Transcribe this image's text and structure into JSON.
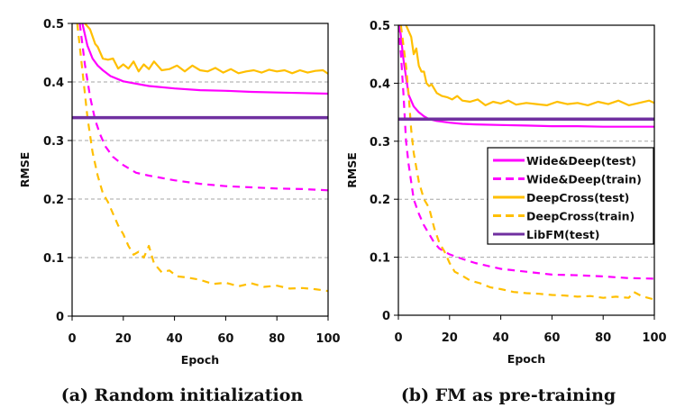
{
  "chart_data": [
    {
      "type": "line",
      "caption": "(a) Random initialization",
      "xlabel": "Epoch",
      "ylabel": "RMSE",
      "xlim": [
        0,
        100
      ],
      "ylim": [
        0,
        0.5
      ],
      "xticks": [
        "0",
        "20",
        "40",
        "60",
        "80",
        "100"
      ],
      "yticks": [
        "0",
        "0.1",
        "0.2",
        "0.3",
        "0.4",
        "0.5"
      ],
      "grid": "horizontal-dashed",
      "legend": "none",
      "series": [
        {
          "name": "Wide&Deep(test)",
          "color": "#FF00FF",
          "style": "solid",
          "x": [
            4,
            6,
            8,
            10,
            12,
            15,
            20,
            25,
            30,
            40,
            50,
            60,
            70,
            80,
            90,
            100
          ],
          "y": [
            0.5,
            0.462,
            0.44,
            0.428,
            0.42,
            0.41,
            0.401,
            0.397,
            0.393,
            0.389,
            0.386,
            0.385,
            0.383,
            0.382,
            0.381,
            0.38
          ]
        },
        {
          "name": "Wide&Deep(train)",
          "color": "#FF00FF",
          "style": "dashed",
          "x": [
            3,
            5,
            7,
            9,
            11,
            13,
            16,
            20,
            25,
            30,
            40,
            50,
            60,
            70,
            80,
            90,
            100
          ],
          "y": [
            0.5,
            0.43,
            0.375,
            0.335,
            0.31,
            0.29,
            0.272,
            0.258,
            0.245,
            0.24,
            0.232,
            0.226,
            0.222,
            0.22,
            0.218,
            0.217,
            0.215
          ]
        },
        {
          "name": "DeepCross(test)",
          "color": "#FFBF00",
          "style": "solid",
          "x": [
            5,
            7,
            9,
            10,
            12,
            14,
            16,
            18,
            20,
            22,
            24,
            26,
            28,
            30,
            32,
            35,
            38,
            41,
            44,
            47,
            50,
            53,
            56,
            59,
            62,
            65,
            68,
            71,
            74,
            77,
            80,
            83,
            86,
            89,
            92,
            95,
            98,
            100
          ],
          "y": [
            0.5,
            0.49,
            0.465,
            0.46,
            0.44,
            0.438,
            0.44,
            0.423,
            0.43,
            0.423,
            0.435,
            0.418,
            0.43,
            0.422,
            0.435,
            0.42,
            0.422,
            0.428,
            0.418,
            0.428,
            0.42,
            0.418,
            0.424,
            0.416,
            0.422,
            0.415,
            0.418,
            0.42,
            0.416,
            0.421,
            0.418,
            0.42,
            0.415,
            0.42,
            0.416,
            0.419,
            0.42,
            0.414
          ]
        },
        {
          "name": "DeepCross(train)",
          "color": "#FFBF00",
          "style": "dashed",
          "x": [
            2,
            4,
            6,
            8,
            10,
            12,
            14,
            16,
            18,
            20,
            22,
            24,
            26,
            28,
            30,
            32,
            35,
            38,
            41,
            45,
            50,
            55,
            60,
            65,
            70,
            75,
            80,
            85,
            90,
            95,
            100
          ],
          "y": [
            0.5,
            0.42,
            0.34,
            0.28,
            0.24,
            0.21,
            0.195,
            0.175,
            0.155,
            0.14,
            0.12,
            0.105,
            0.11,
            0.1,
            0.12,
            0.09,
            0.075,
            0.078,
            0.068,
            0.066,
            0.062,
            0.055,
            0.057,
            0.051,
            0.056,
            0.05,
            0.052,
            0.047,
            0.048,
            0.046,
            0.043
          ]
        },
        {
          "name": "LibFM(test)",
          "color": "#7030A0",
          "style": "solid",
          "x": [
            0,
            100
          ],
          "y": [
            0.339,
            0.339
          ]
        }
      ]
    },
    {
      "type": "line",
      "caption": "(b) FM as pre-training",
      "xlabel": "Epoch",
      "ylabel": "RMSE",
      "xlim": [
        0,
        100
      ],
      "ylim": [
        0,
        0.5
      ],
      "xticks": [
        "0",
        "20",
        "40",
        "60",
        "80",
        "100"
      ],
      "yticks": [
        "0",
        "0.1",
        "0.2",
        "0.3",
        "0.4",
        "0.5"
      ],
      "grid": "horizontal-dashed",
      "legend": "inside lower-right",
      "legend_entries": [
        "Wide&Deep(test)",
        "Wide&Deep(train)",
        "DeepCross(test)",
        "DeepCross(train)",
        "LibFM(test)"
      ],
      "series": [
        {
          "name": "Wide&Deep(test)",
          "color": "#FF00FF",
          "style": "solid",
          "x": [
            0.5,
            2,
            4,
            6,
            8,
            10,
            12,
            15,
            20,
            25,
            30,
            40,
            50,
            60,
            70,
            80,
            90,
            100
          ],
          "y": [
            0.5,
            0.44,
            0.38,
            0.36,
            0.35,
            0.343,
            0.338,
            0.335,
            0.332,
            0.33,
            0.329,
            0.328,
            0.327,
            0.326,
            0.326,
            0.325,
            0.325,
            0.325
          ]
        },
        {
          "name": "Wide&Deep(train)",
          "color": "#FF00FF",
          "style": "dashed",
          "x": [
            0,
            1,
            2,
            3,
            4,
            5,
            6,
            8,
            10,
            12,
            14,
            16,
            18,
            20,
            25,
            30,
            35,
            40,
            50,
            60,
            70,
            80,
            90,
            100
          ],
          "y": [
            0.5,
            0.45,
            0.38,
            0.3,
            0.26,
            0.23,
            0.2,
            0.175,
            0.155,
            0.14,
            0.125,
            0.115,
            0.11,
            0.105,
            0.097,
            0.09,
            0.085,
            0.08,
            0.075,
            0.07,
            0.069,
            0.067,
            0.064,
            0.063
          ]
        },
        {
          "name": "DeepCross(test)",
          "color": "#FFBF00",
          "style": "solid",
          "x": [
            3,
            5,
            6,
            7,
            8,
            9,
            10,
            11,
            12,
            13,
            15,
            17,
            19,
            21,
            23,
            25,
            28,
            31,
            34,
            37,
            40,
            43,
            46,
            50,
            54,
            58,
            62,
            66,
            70,
            74,
            78,
            82,
            86,
            90,
            94,
            98,
            100
          ],
          "y": [
            0.5,
            0.48,
            0.45,
            0.46,
            0.43,
            0.42,
            0.42,
            0.4,
            0.395,
            0.398,
            0.383,
            0.378,
            0.376,
            0.372,
            0.378,
            0.37,
            0.368,
            0.372,
            0.362,
            0.368,
            0.365,
            0.37,
            0.363,
            0.366,
            0.364,
            0.362,
            0.368,
            0.364,
            0.366,
            0.362,
            0.368,
            0.364,
            0.37,
            0.362,
            0.366,
            0.37,
            0.366
          ]
        },
        {
          "name": "DeepCross(train)",
          "color": "#FFBF00",
          "style": "dashed",
          "x": [
            1,
            3,
            4,
            5,
            6,
            8,
            10,
            12,
            14,
            16,
            18,
            20,
            22,
            25,
            28,
            32,
            36,
            40,
            45,
            50,
            55,
            60,
            65,
            70,
            75,
            80,
            85,
            90,
            92,
            95,
            100
          ],
          "y": [
            0.5,
            0.43,
            0.38,
            0.32,
            0.28,
            0.23,
            0.2,
            0.185,
            0.15,
            0.125,
            0.11,
            0.09,
            0.075,
            0.068,
            0.06,
            0.055,
            0.048,
            0.045,
            0.04,
            0.038,
            0.037,
            0.035,
            0.034,
            0.032,
            0.033,
            0.03,
            0.032,
            0.03,
            0.04,
            0.033,
            0.027
          ]
        },
        {
          "name": "LibFM(test)",
          "color": "#7030A0",
          "style": "solid",
          "x": [
            0,
            100
          ],
          "y": [
            0.338,
            0.338
          ]
        }
      ]
    }
  ]
}
